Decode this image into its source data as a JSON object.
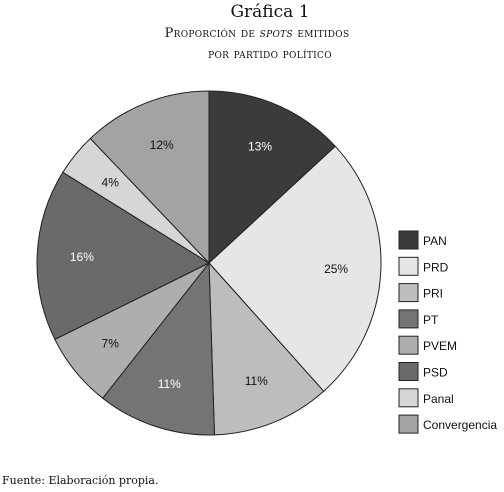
{
  "chart_data": {
    "type": "pie",
    "title": "Gráfica 1",
    "subtitle_pre": "Proporción de ",
    "subtitle_em": "spots",
    "subtitle_post": " emitidos",
    "subtitle_line2": "por partido político",
    "start_angle_deg": 0,
    "direction": "clockwise",
    "legend": "right",
    "slices": [
      {
        "name": "PAN",
        "value": 13,
        "label": "13%",
        "color": "#3b3b3b",
        "label_color": "#ffffff"
      },
      {
        "name": "PRD",
        "value": 25,
        "label": "25%",
        "color": "#e6e6e6",
        "label_color": "#111111"
      },
      {
        "name": "PRI",
        "value": 11,
        "label": "11%",
        "color": "#bdbdbd",
        "label_color": "#111111"
      },
      {
        "name": "PT",
        "value": 11,
        "label": "11%",
        "color": "#747474",
        "label_color": "#ffffff"
      },
      {
        "name": "PVEM",
        "value": 7,
        "label": "7%",
        "color": "#aeaeae",
        "label_color": "#111111"
      },
      {
        "name": "PSD",
        "value": 16,
        "label": "16%",
        "color": "#6a6a6a",
        "label_color": "#ffffff"
      },
      {
        "name": "Panal",
        "value": 4,
        "label": "4%",
        "color": "#d6d6d6",
        "label_color": "#111111"
      },
      {
        "name": "Convergencia",
        "value": 12,
        "label": "12%",
        "color": "#a3a3a3",
        "label_color": "#111111"
      }
    ]
  },
  "source_text": "Fuente: Elaboración propia."
}
